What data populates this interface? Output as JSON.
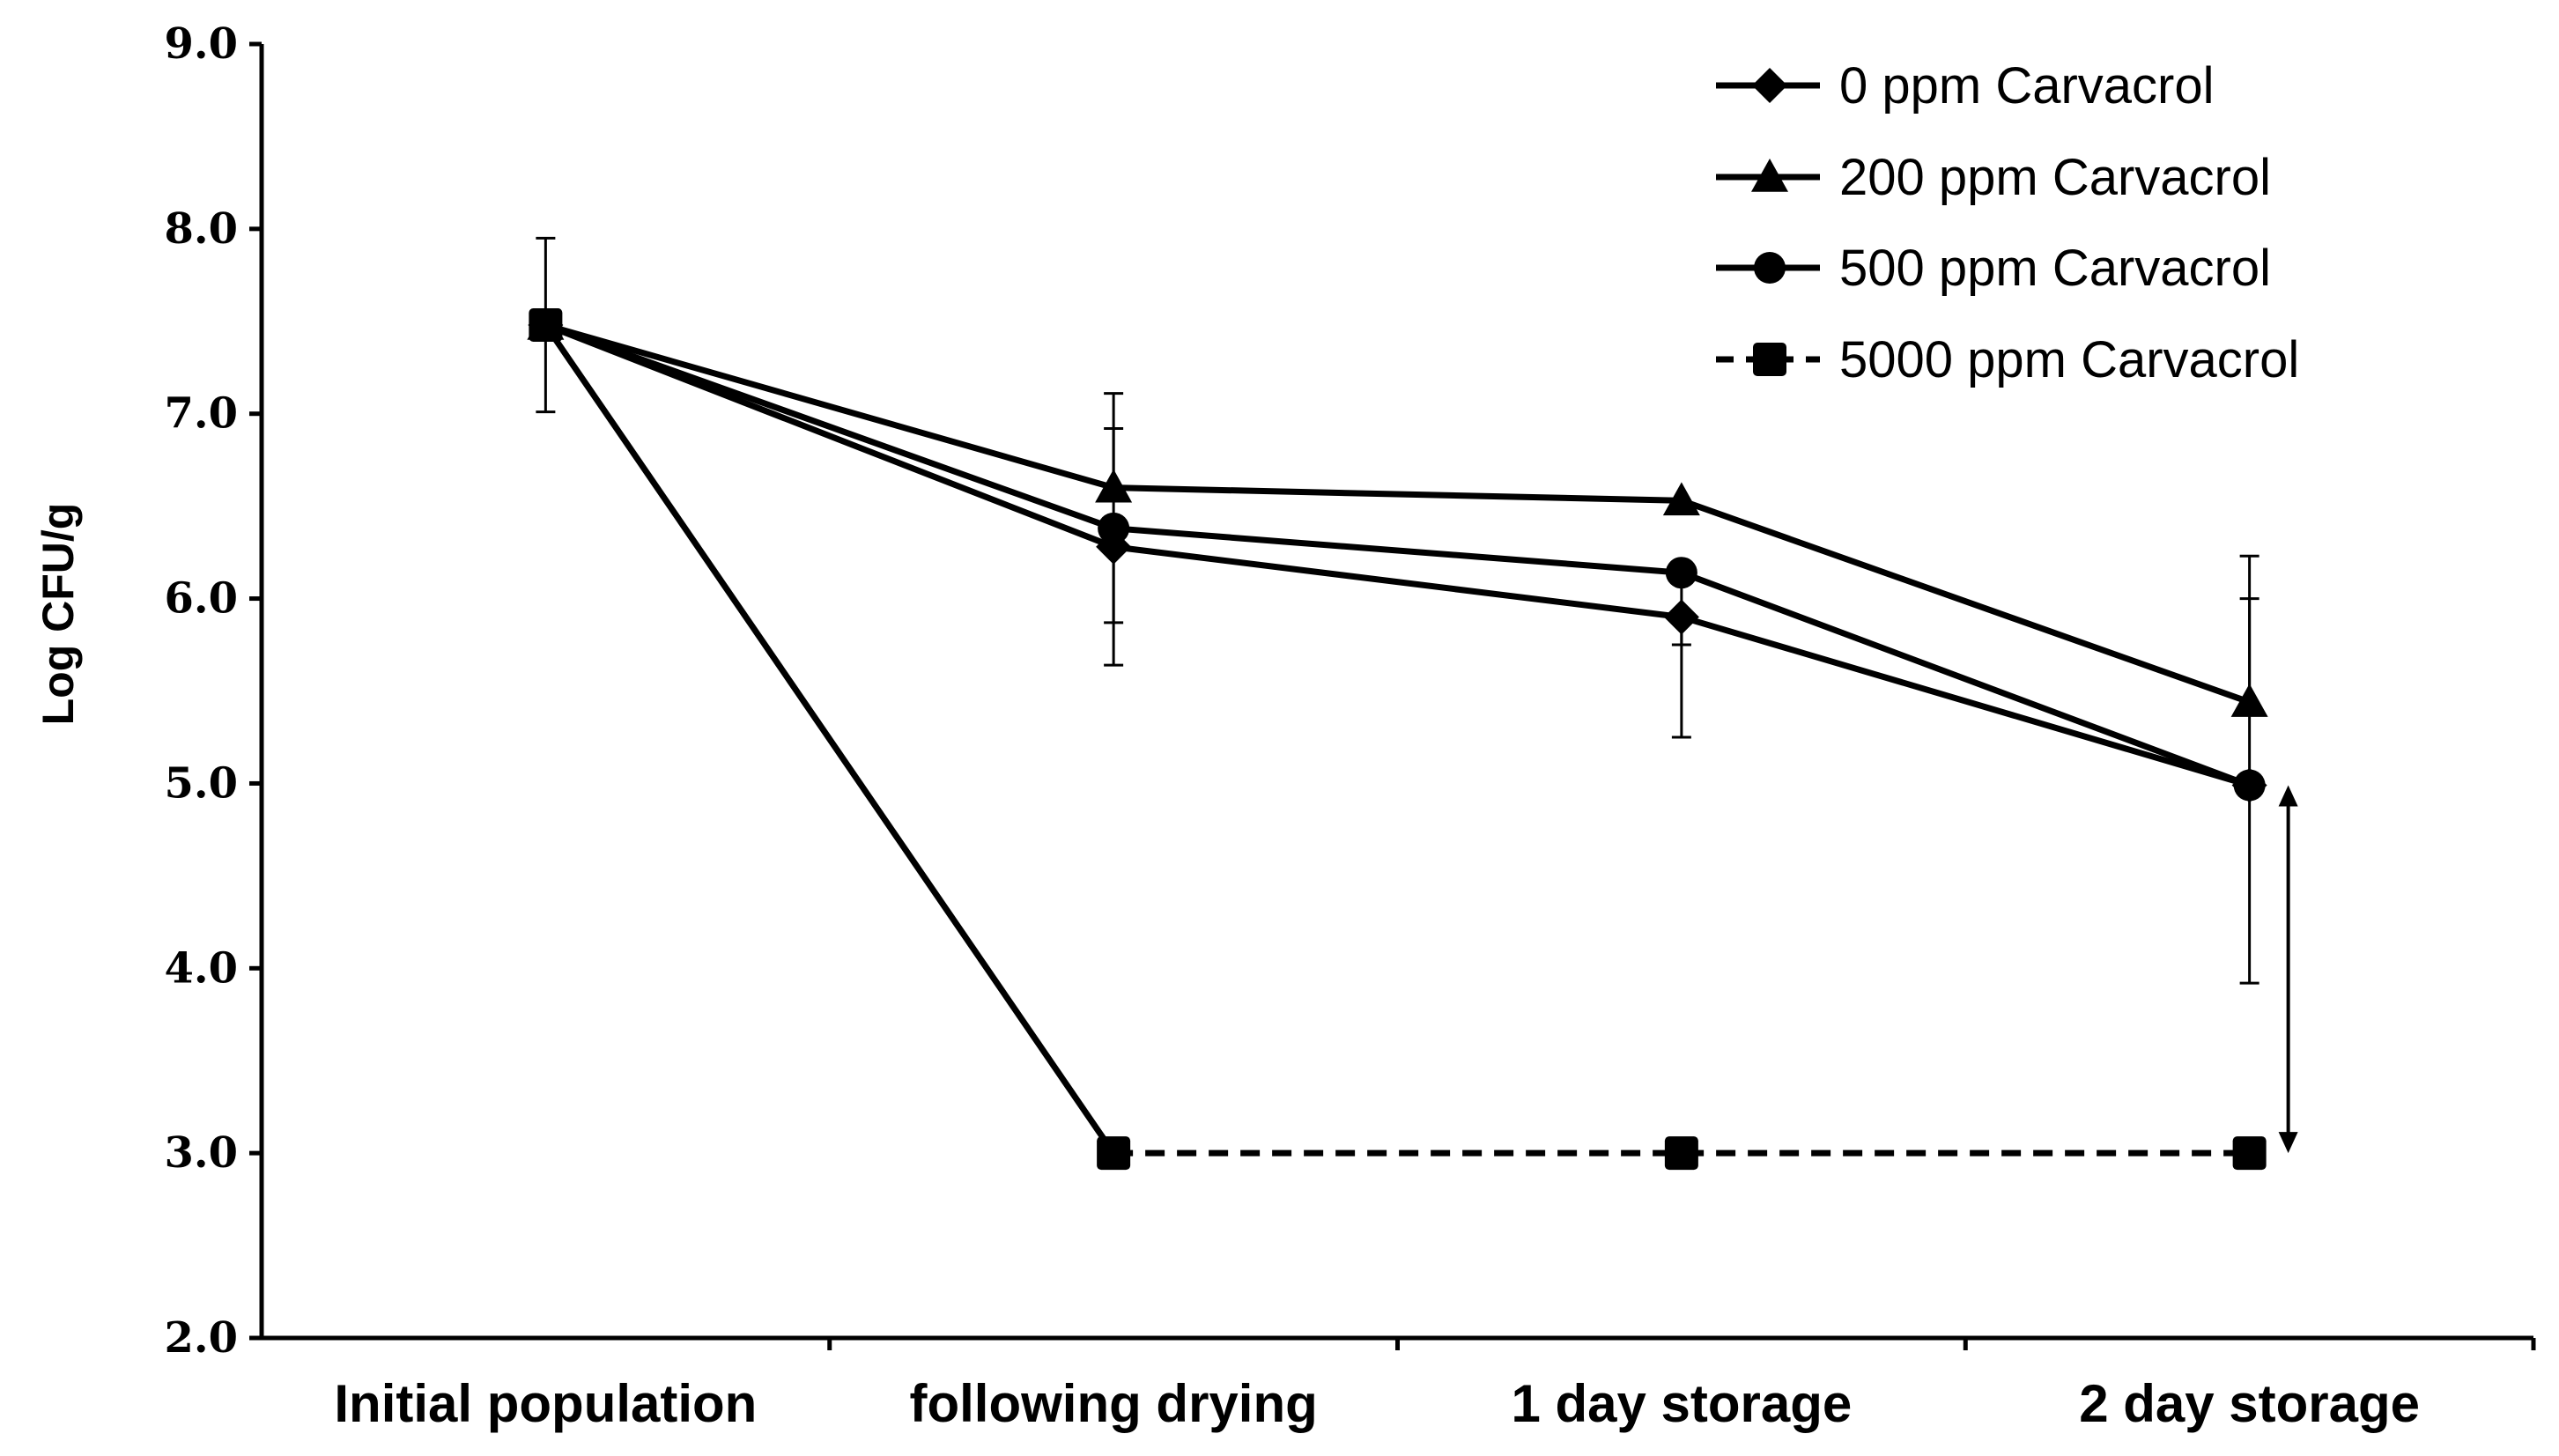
{
  "chart_data": {
    "type": "line",
    "title": "",
    "xlabel": "",
    "ylabel": "Log CFU/g",
    "ylim": [
      2.0,
      9.0
    ],
    "yticks": [
      "2.0",
      "3.0",
      "4.0",
      "5.0",
      "6.0",
      "7.0",
      "8.0",
      "9.0"
    ],
    "categories": [
      "Initial population",
      "following drying",
      "1 day storage",
      "2 day storage"
    ],
    "series": [
      {
        "name": "0 ppm Carvacrol",
        "marker": "diamond",
        "dash": "solid",
        "values": [
          7.48,
          6.28,
          5.9,
          4.99
        ],
        "err_hi": [
          null,
          6.92,
          null,
          6.0
        ],
        "err_lo": [
          null,
          5.64,
          5.25,
          null
        ]
      },
      {
        "name": "200 ppm Carvacrol",
        "marker": "triangle",
        "dash": "solid",
        "values": [
          7.48,
          6.6,
          6.53,
          5.44
        ],
        "err_hi": [
          7.95,
          7.11,
          null,
          6.23
        ],
        "err_lo": [
          7.01,
          null,
          null,
          null
        ]
      },
      {
        "name": "500 ppm Carvacrol",
        "marker": "circle",
        "dash": "solid",
        "values": [
          7.48,
          6.38,
          6.14,
          4.99
        ],
        "err_hi": [
          null,
          null,
          null,
          null
        ],
        "err_lo": [
          null,
          5.87,
          5.75,
          3.92
        ]
      },
      {
        "name": "5000 ppm Carvacrol",
        "marker": "square",
        "dash": "dashed",
        "values": [
          7.48,
          3.0,
          3.0,
          3.0
        ],
        "err_hi": [
          null,
          null,
          null,
          null
        ],
        "err_lo": [
          null,
          null,
          null,
          null
        ]
      }
    ],
    "annotations": [
      {
        "type": "double-arrow",
        "category": "2 day storage",
        "from": 4.99,
        "to": 3.0
      }
    ],
    "legend": "top-right",
    "grid": false
  }
}
